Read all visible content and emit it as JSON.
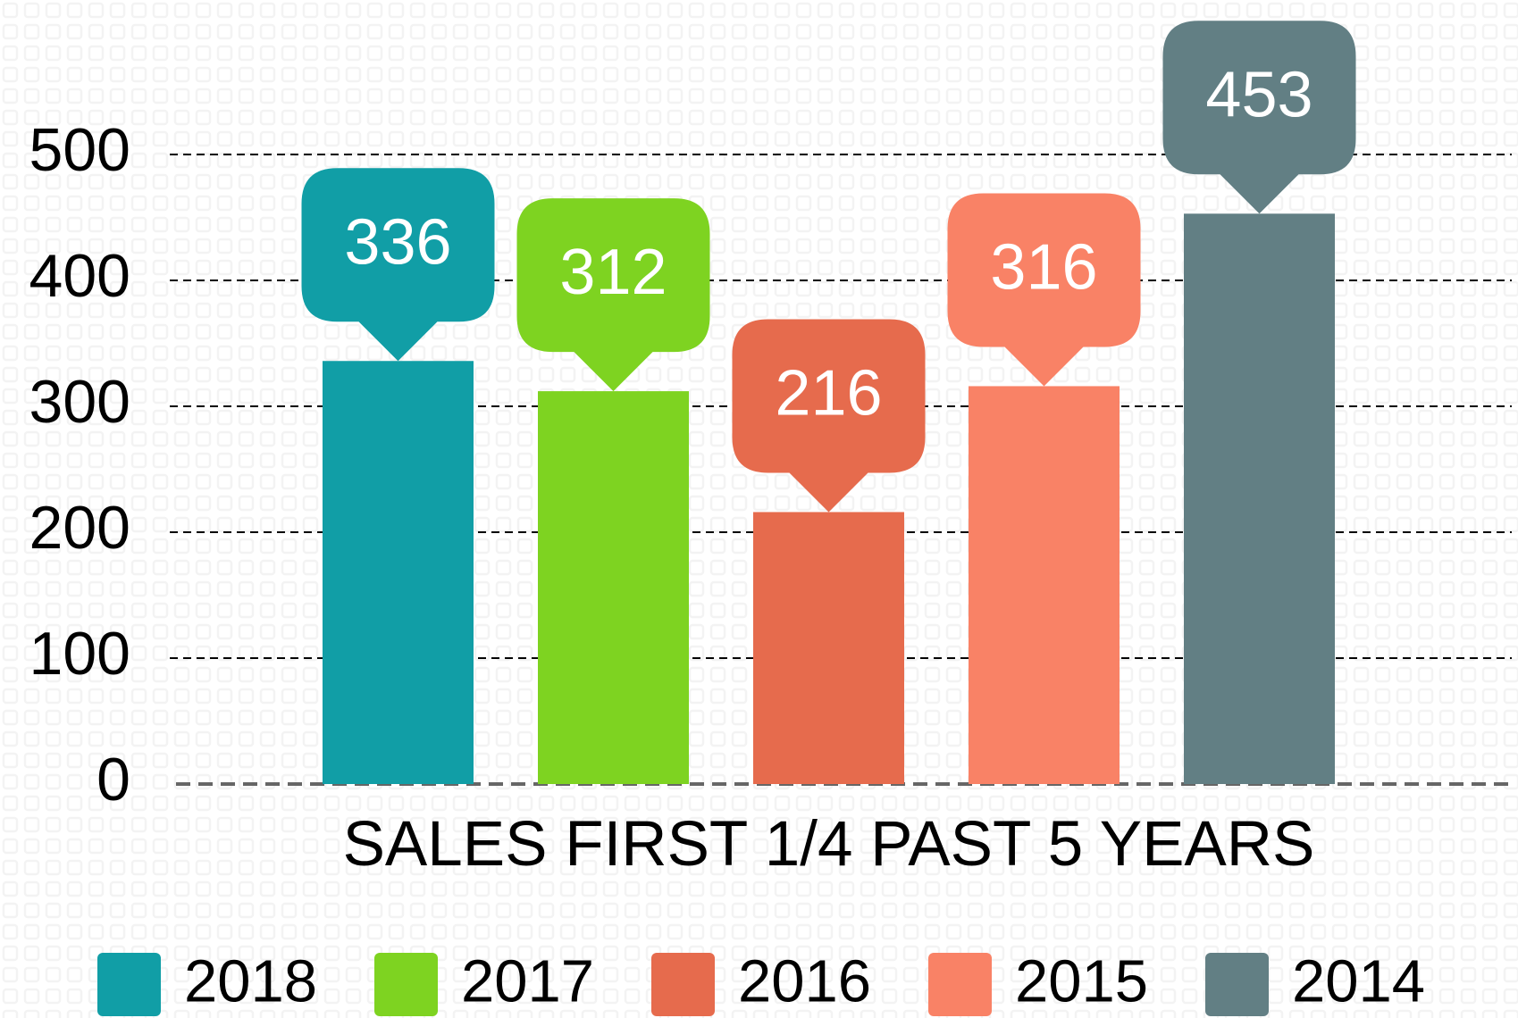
{
  "chart_data": {
    "type": "bar",
    "categories": [
      "SALES FIRST 1/4 PAST 5 YEARS"
    ],
    "series": [
      {
        "name": "2018",
        "color": "#119ea6",
        "values": [
          336
        ]
      },
      {
        "name": "2017",
        "color": "#7ed321",
        "values": [
          312
        ]
      },
      {
        "name": "2016",
        "color": "#e66b4d",
        "values": [
          216
        ]
      },
      {
        "name": "2015",
        "color": "#f98266",
        "values": [
          316
        ]
      },
      {
        "name": "2014",
        "color": "#627f84",
        "values": [
          453
        ]
      }
    ],
    "ylim": [
      0,
      500
    ],
    "yticks": [
      0,
      100,
      200,
      300,
      400,
      500
    ],
    "grid": true,
    "legend": "bottom"
  }
}
